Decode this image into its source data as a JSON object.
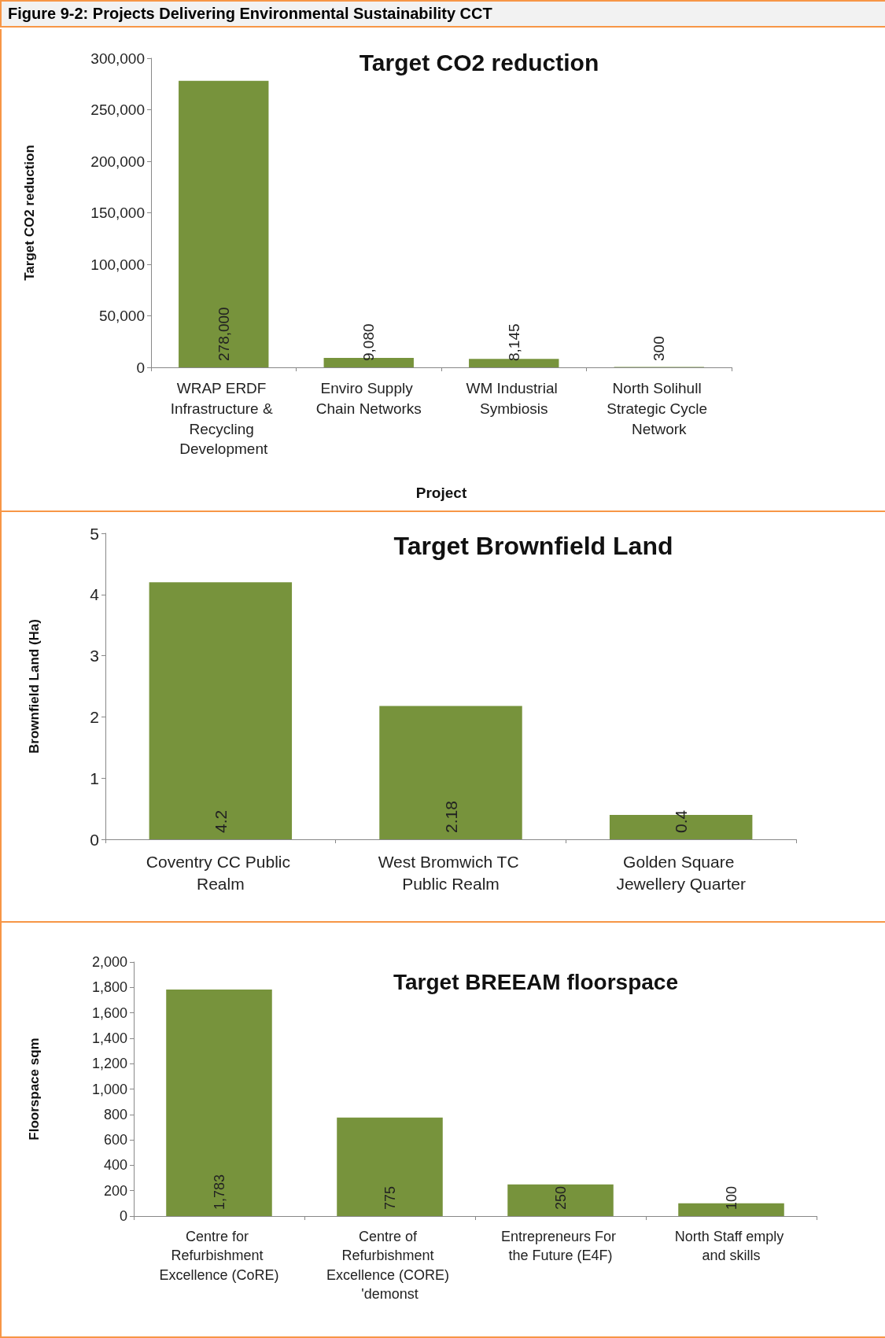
{
  "chart_data": [
    {
      "type": "bar",
      "title": "Target CO2 reduction",
      "xlabel": "Project",
      "ylabel": "Target CO2 reduction",
      "annotations": [
        "Figure 9-2: Projects Delivering Environmental Sustainability CCT"
      ],
      "categories": [
        "WRAP ERDF Infrastructure & Recycling Development",
        "Enviro Supply Chain Networks",
        "WM Industrial Symbiosis",
        "North Solihull Strategic Cycle Network"
      ],
      "values": [
        278000,
        9080,
        8145,
        300
      ],
      "value_labels": [
        "278,000",
        "9,080",
        "8,145",
        "300"
      ],
      "color": "#77933c",
      "ylim": [
        0,
        300000
      ],
      "yticks": [
        0,
        {
          "value": 50000,
          "label": "50,000"
        },
        {
          "value": 100000,
          "label": "100,000"
        },
        {
          "value": 150000,
          "label": "150,000"
        },
        {
          "value": 200000,
          "label": "200,000"
        },
        {
          "value": 250000,
          "label": "250,000"
        },
        {
          "value": 300000,
          "label": "300,000"
        }
      ],
      "grid": false
    },
    {
      "type": "bar",
      "title": "Target Brownfield Land",
      "ylabel": "Brownfield Land (Ha)",
      "categories": [
        "Coventry CC Public Realm",
        "West Bromwich TC Public Realm",
        "Golden Square Jewellery Quarter"
      ],
      "values": [
        4.2,
        2.18,
        0.4
      ],
      "value_labels": [
        "4.2",
        "2.18",
        "0.4"
      ],
      "color": "#77933c",
      "ylim": [
        0,
        5
      ],
      "yticks": [
        0,
        1,
        2,
        3,
        4,
        5
      ],
      "grid": false
    },
    {
      "type": "bar",
      "title": "Target BREEAM floorspace",
      "ylabel": "Floorspace sqm",
      "categories": [
        "Centre for Refurbishment Excellence (CoRE)",
        "Centre of Refurbishment Excellence (CORE) 'demonst",
        "Entrepreneurs For the Future (E4F)",
        "North Staff emply and skills"
      ],
      "values": [
        1783,
        775,
        250,
        100
      ],
      "value_labels": [
        "1,783",
        "775",
        "250",
        "100"
      ],
      "color": "#77933c",
      "ylim": [
        0,
        2000
      ],
      "yticks": [
        0,
        200,
        400,
        600,
        800,
        {
          "value": 1000,
          "label": "1,000"
        },
        {
          "value": 1200,
          "label": "1,200"
        },
        {
          "value": 1400,
          "label": "1,400"
        },
        {
          "value": 1600,
          "label": "1,600"
        },
        {
          "value": 1800,
          "label": "1,800"
        },
        {
          "value": 2000,
          "label": "2,000"
        }
      ],
      "grid": false
    }
  ]
}
